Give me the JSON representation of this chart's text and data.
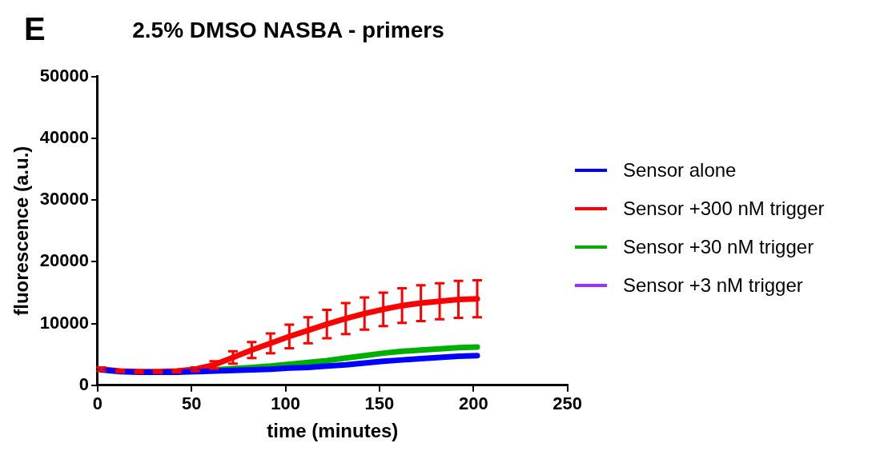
{
  "chart_data": {
    "type": "line",
    "title": "2.5% DMSO NASBA - primers",
    "xlabel": "time (minutes)",
    "ylabel": "fluorescence (a.u.)",
    "annotations": [
      "E"
    ],
    "x": [
      2,
      12,
      22,
      32,
      42,
      52,
      62,
      72,
      82,
      92,
      102,
      112,
      122,
      132,
      142,
      152,
      162,
      172,
      182,
      192,
      202
    ],
    "xlim": [
      0,
      250
    ],
    "xticks": [
      0,
      50,
      100,
      150,
      200,
      250
    ],
    "ylim": [
      0,
      50000
    ],
    "yticks": [
      0,
      10000,
      20000,
      30000,
      40000,
      50000
    ],
    "grid": false,
    "legend": "right",
    "marker": "none",
    "line_style": "solid",
    "series": [
      {
        "name": "Sensor alone",
        "color": "#0000ff",
        "values": [
          2500,
          2200,
          2100,
          2100,
          2100,
          2200,
          2300,
          2400,
          2500,
          2600,
          2800,
          2900,
          3100,
          3300,
          3600,
          3900,
          4100,
          4300,
          4500,
          4700,
          4800
        ]
      },
      {
        "name": "Sensor +300 nM trigger",
        "color": "#ff0000",
        "values": [
          2600,
          2300,
          2200,
          2200,
          2300,
          2600,
          3300,
          4500,
          5700,
          6800,
          7900,
          8900,
          9900,
          10800,
          11600,
          12300,
          12900,
          13300,
          13600,
          13900,
          14000
        ],
        "errors": [
          300,
          200,
          200,
          200,
          200,
          300,
          600,
          1000,
          1300,
          1600,
          1900,
          2100,
          2300,
          2500,
          2600,
          2700,
          2800,
          2900,
          2900,
          3000,
          3000
        ]
      },
      {
        "name": "Sensor +30 nM trigger",
        "color": "#00b000",
        "values": [
          null,
          null,
          null,
          null,
          null,
          null,
          2500,
          2700,
          2900,
          3100,
          3400,
          3700,
          4000,
          4400,
          4800,
          5200,
          5500,
          5700,
          5900,
          6100,
          6200
        ]
      },
      {
        "name": "Sensor +3 nM trigger",
        "color": "#9b30ff",
        "values": [
          null,
          null,
          null,
          null,
          null,
          null,
          null,
          null,
          null,
          null,
          null,
          null,
          null,
          null,
          null,
          null,
          null,
          null,
          null,
          null,
          null
        ]
      }
    ]
  }
}
